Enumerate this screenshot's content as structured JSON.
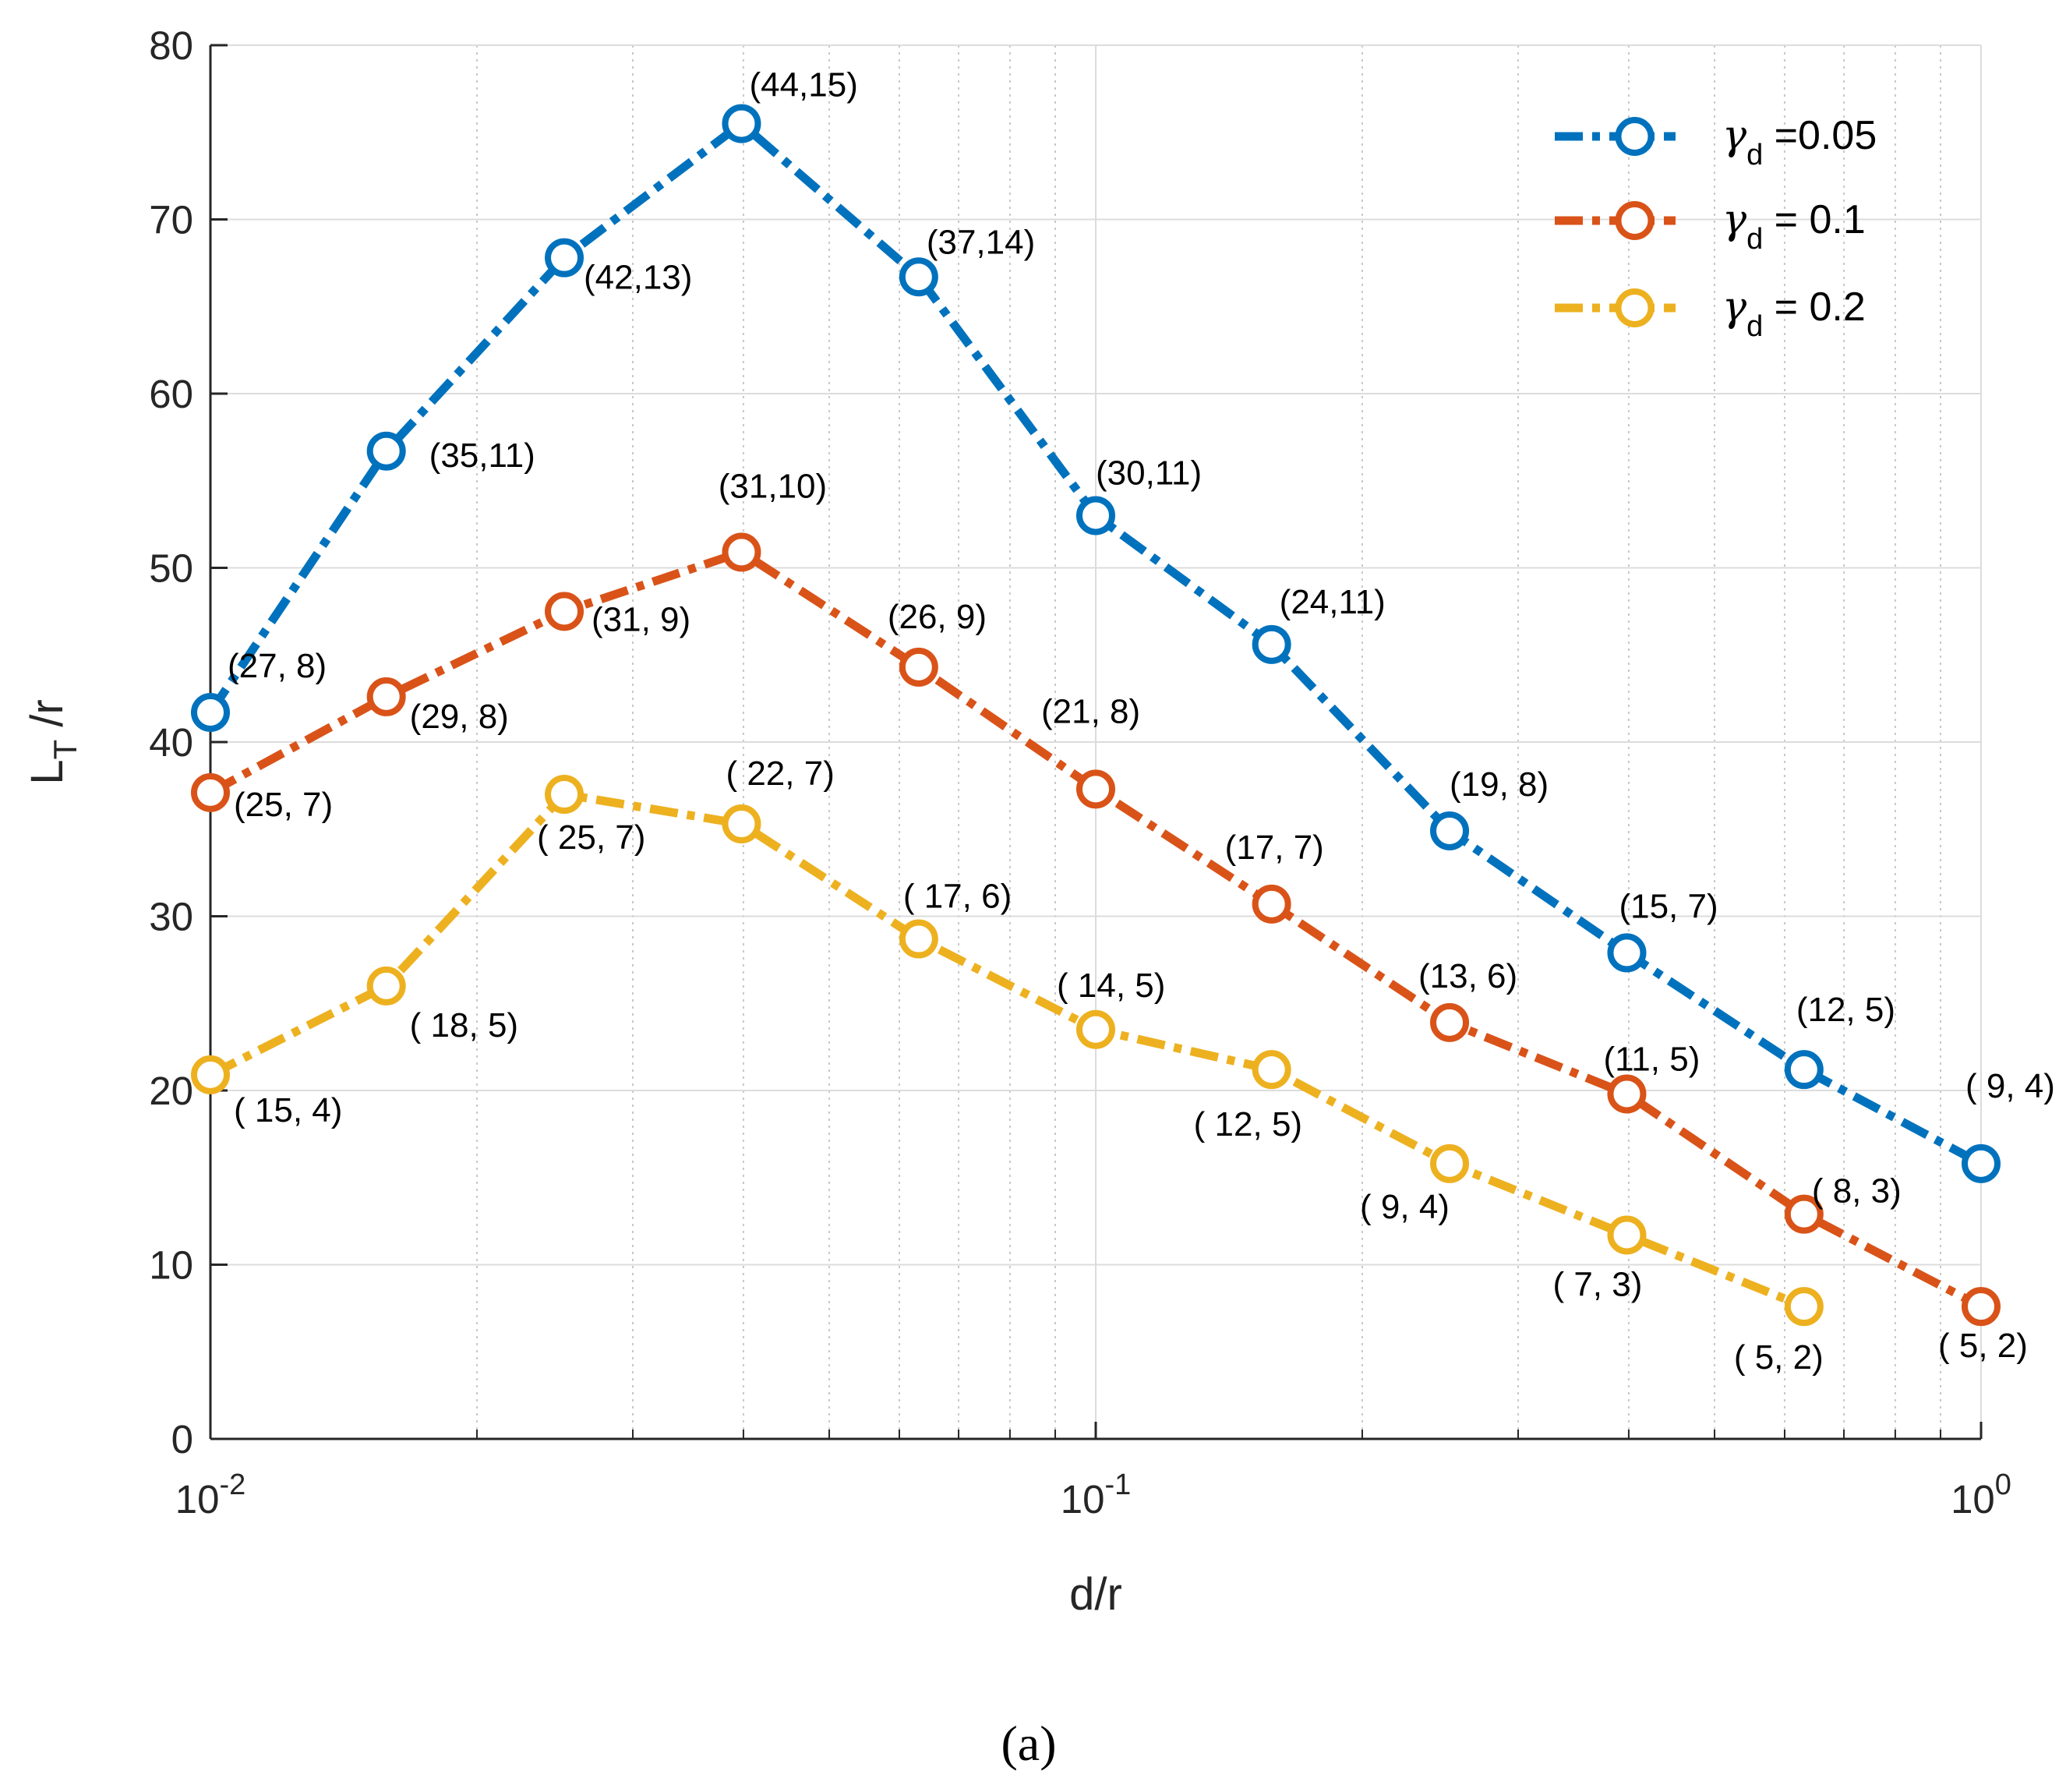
{
  "chart_data": {
    "type": "line",
    "x_scale": "log",
    "xlim": [
      0.01,
      1
    ],
    "ylim": [
      0,
      80
    ],
    "x_ticks": [
      {
        "value": 0.01,
        "base": "10",
        "exp": "-2"
      },
      {
        "value": 0.1,
        "base": "10",
        "exp": "-1"
      },
      {
        "value": 1,
        "base": "10",
        "exp": "0"
      }
    ],
    "y_ticks": [
      "0",
      "10",
      "20",
      "30",
      "40",
      "50",
      "60",
      "70",
      "80"
    ],
    "xlabel": "d/r",
    "ylabel": {
      "main": "L",
      "sub": "T",
      "rest": " /r"
    },
    "grid": true,
    "legend_position": "top-right",
    "caption": "(a)",
    "x": [
      0.01,
      0.0158,
      0.0251,
      0.0398,
      0.0631,
      0.1,
      0.158,
      0.251,
      0.398,
      0.631,
      1
    ],
    "series": [
      {
        "name": "γd =0.05",
        "legend": {
          "symbol": "γ",
          "sub": "d",
          "text": " =0.05"
        },
        "color": "#0072BD",
        "values": [
          41.7,
          56.7,
          67.8,
          75.5,
          66.7,
          53.0,
          45.6,
          34.9,
          27.9,
          21.2,
          15.8
        ],
        "labels": [
          "(27, 8)",
          "(35,11)",
          "(42,13)",
          "(44,15)",
          "(37,14)",
          "(30,11)",
          "(24,11)",
          "(19, 8)",
          "(15, 7)",
          "(12, 5)",
          "( 9, 4)"
        ]
      },
      {
        "name": "γd = 0.1",
        "legend": {
          "symbol": "γ",
          "sub": "d",
          "text": " = 0.1"
        },
        "color": "#D95319",
        "values": [
          37.1,
          42.6,
          47.5,
          50.9,
          44.3,
          37.3,
          30.7,
          23.9,
          19.8,
          12.9,
          7.6
        ],
        "labels": [
          "(25, 7)",
          "(29, 8)",
          "(31, 9)",
          "(31,10)",
          "(26, 9)",
          "(21, 8)",
          "(17, 7)",
          "(13, 6)",
          "(11, 5)",
          "( 8, 3)",
          "( 5, 2)"
        ]
      },
      {
        "name": "γd = 0.2",
        "legend": {
          "symbol": "γ",
          "sub": "d",
          "text": " = 0.2"
        },
        "color": "#EDB120",
        "values": [
          20.9,
          26.0,
          37.0,
          35.3,
          28.7,
          23.5,
          21.2,
          15.8,
          11.7,
          7.6,
          null
        ],
        "labels": [
          "( 15,  4)",
          "( 18,  5)",
          "( 25,  7)",
          "( 22,  7)",
          "( 17,  6)",
          "( 14,  5)",
          "( 12,  5)",
          "(  9,  4)",
          "(  7,  3)",
          "(  5,  2)",
          null
        ]
      }
    ]
  }
}
